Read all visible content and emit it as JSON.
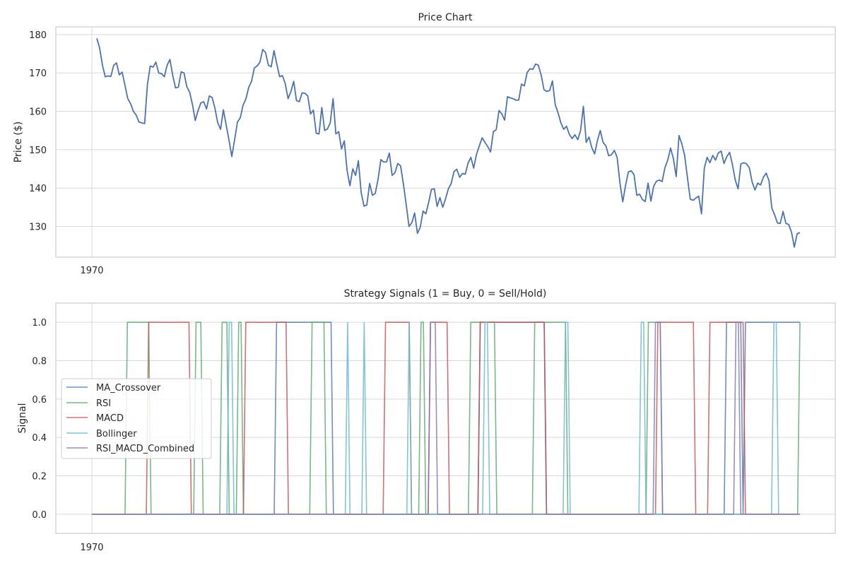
{
  "colors": {
    "MA_Crossover": "#4c72b0",
    "RSI": "#55a868",
    "MACD": "#c44e52",
    "Bollinger": "#64b5cd",
    "RSI_MACD_Combined": "#8172b2",
    "grid": "#d9d9d9",
    "frame": "#cccccc"
  },
  "chart_data": [
    {
      "type": "line",
      "title": "Price Chart",
      "xlabel": "",
      "ylabel": "Price ($)",
      "ylim": [
        122,
        182
      ],
      "yticks": [
        130,
        140,
        150,
        160,
        170,
        180
      ],
      "xtick_label": "1970",
      "grid": true,
      "series": [
        {
          "values": [
            179,
            176.5,
            172,
            169,
            169.2,
            169.1,
            172,
            172.6,
            169.5,
            170.2,
            166.8,
            163.3,
            162,
            160,
            159,
            157.2,
            157,
            156.8,
            167,
            171.8,
            171.5,
            172.8,
            170,
            169.8,
            169,
            172,
            173.5,
            169.3,
            166.1,
            166.3,
            170.3,
            170,
            166.4,
            165,
            161.8,
            157.6,
            160.2,
            162.2,
            162.5,
            160.6,
            164,
            163.6,
            160.8,
            157,
            155.3,
            160.4,
            156.4,
            152.5,
            148.2,
            152.6,
            157.2,
            158.3,
            161.6,
            163.2,
            166.2,
            167.8,
            171.3,
            171.8,
            172.8,
            176.1,
            175.3,
            172,
            171.6,
            175.8,
            172.3,
            169,
            169.3,
            167.2,
            163.3,
            165.1,
            167.8,
            162.8,
            162.5,
            164.8,
            164.7,
            164,
            159.3,
            160.3,
            154.3,
            154.1,
            161,
            155,
            155.4,
            157,
            163.3,
            154.1,
            154.7,
            150.2,
            152.3,
            144.5,
            140.6,
            145,
            143.3,
            147.1,
            138.8,
            135.3,
            135.6,
            141.2,
            138.1,
            138.6,
            142.3,
            147.4,
            146.8,
            146.8,
            149.1,
            143.3,
            144,
            146.4,
            145.8,
            141.1,
            135.7,
            130,
            131,
            133.5,
            128.2,
            129.8,
            134,
            133.3,
            136.3,
            139.7,
            139.8,
            135.2,
            137.5,
            135,
            137.2,
            139.8,
            141.2,
            144.3,
            144.9,
            142.8,
            143.8,
            143.6,
            146.5,
            148,
            145.2,
            148.8,
            151,
            153.1,
            151.9,
            150.8,
            149.4,
            154.7,
            155.2,
            160.2,
            159.3,
            157.7,
            163.8,
            163.5,
            163.3,
            162.9,
            162.9,
            167.1,
            166.6,
            170.1,
            171.1,
            170.9,
            172.3,
            172,
            169.4,
            165.6,
            165.2,
            165.4,
            167.9,
            161.7,
            159.6,
            157,
            155.3,
            156.1,
            154,
            152.9,
            153.9,
            152.6,
            155,
            161.3,
            151.9,
            153.3,
            150.5,
            148.9,
            152.4,
            155,
            151.9,
            151,
            148.4,
            148.7,
            149.8,
            148,
            141.3,
            136.4,
            140.7,
            144.2,
            144.5,
            143.5,
            138.1,
            138.4,
            137,
            136.5,
            141.3,
            136.6,
            140.5,
            141.8,
            142.1,
            141.7,
            145.3,
            147.3,
            150.4,
            147.7,
            143,
            153.7,
            151.5,
            148.5,
            142.7,
            137.1,
            136.8,
            137.4,
            137.9,
            133.3,
            145.2,
            148,
            146.6,
            148.5,
            147.3,
            149.2,
            149.6,
            146.4,
            148.2,
            149.3,
            146.1,
            142.1,
            139.8,
            146.3,
            146.6,
            146.3,
            145.3,
            141.6,
            139.5,
            141.3,
            140.8,
            142.8,
            143.9,
            141.9,
            134.8,
            133,
            130.9,
            130.8,
            133.9,
            130.8,
            130.5,
            128.5,
            124.6,
            128.1,
            128.4
          ]
        }
      ]
    },
    {
      "type": "line",
      "title": "Strategy Signals (1 = Buy, 0 = Sell/Hold)",
      "xlabel": "",
      "ylabel": "Signal",
      "ylim": [
        -0.1,
        1.1
      ],
      "yticks": [
        0.0,
        0.2,
        0.4,
        0.6,
        0.8,
        1.0
      ],
      "ytick_labels": [
        "0.0",
        "0.2",
        "0.4",
        "0.6",
        "0.8",
        "1.0"
      ],
      "xtick_label": "1970",
      "grid": true,
      "legend_position": "center-left",
      "num_points": 300,
      "series": [
        {
          "name": "MA_Crossover",
          "buy_ranges": [
            [
              78,
              101
            ],
            [
              164,
              191
            ],
            [
              268,
              274
            ],
            [
              276,
              299
            ]
          ]
        },
        {
          "name": "RSI",
          "buy_ranges": [
            [
              15,
              24
            ],
            [
              44,
              46
            ],
            [
              55,
              57
            ],
            [
              62,
              63
            ],
            [
              93,
              98
            ],
            [
              139,
              140
            ],
            [
              160,
              170
            ],
            [
              187,
              200
            ],
            [
              235,
              240
            ],
            [
              299,
              299
            ]
          ]
        },
        {
          "name": "MACD",
          "buy_ranges": [
            [
              24,
              41
            ],
            [
              65,
              82
            ],
            [
              124,
              134
            ],
            [
              143,
              150
            ],
            [
              164,
              191
            ],
            [
              239,
              254
            ],
            [
              261,
              275
            ]
          ]
        },
        {
          "name": "Bollinger",
          "buy_ranges": [
            [
              58,
              59
            ],
            [
              108,
              108
            ],
            [
              115,
              115
            ],
            [
              134,
              134
            ],
            [
              166,
              167
            ],
            [
              200,
              201
            ],
            [
              232,
              233
            ],
            [
              288,
              289
            ]
          ]
        },
        {
          "name": "RSI_MACD_Combined",
          "buy_ranges": [
            [
              143,
              145
            ],
            [
              238,
              240
            ],
            [
              272,
              273
            ]
          ]
        }
      ]
    }
  ]
}
